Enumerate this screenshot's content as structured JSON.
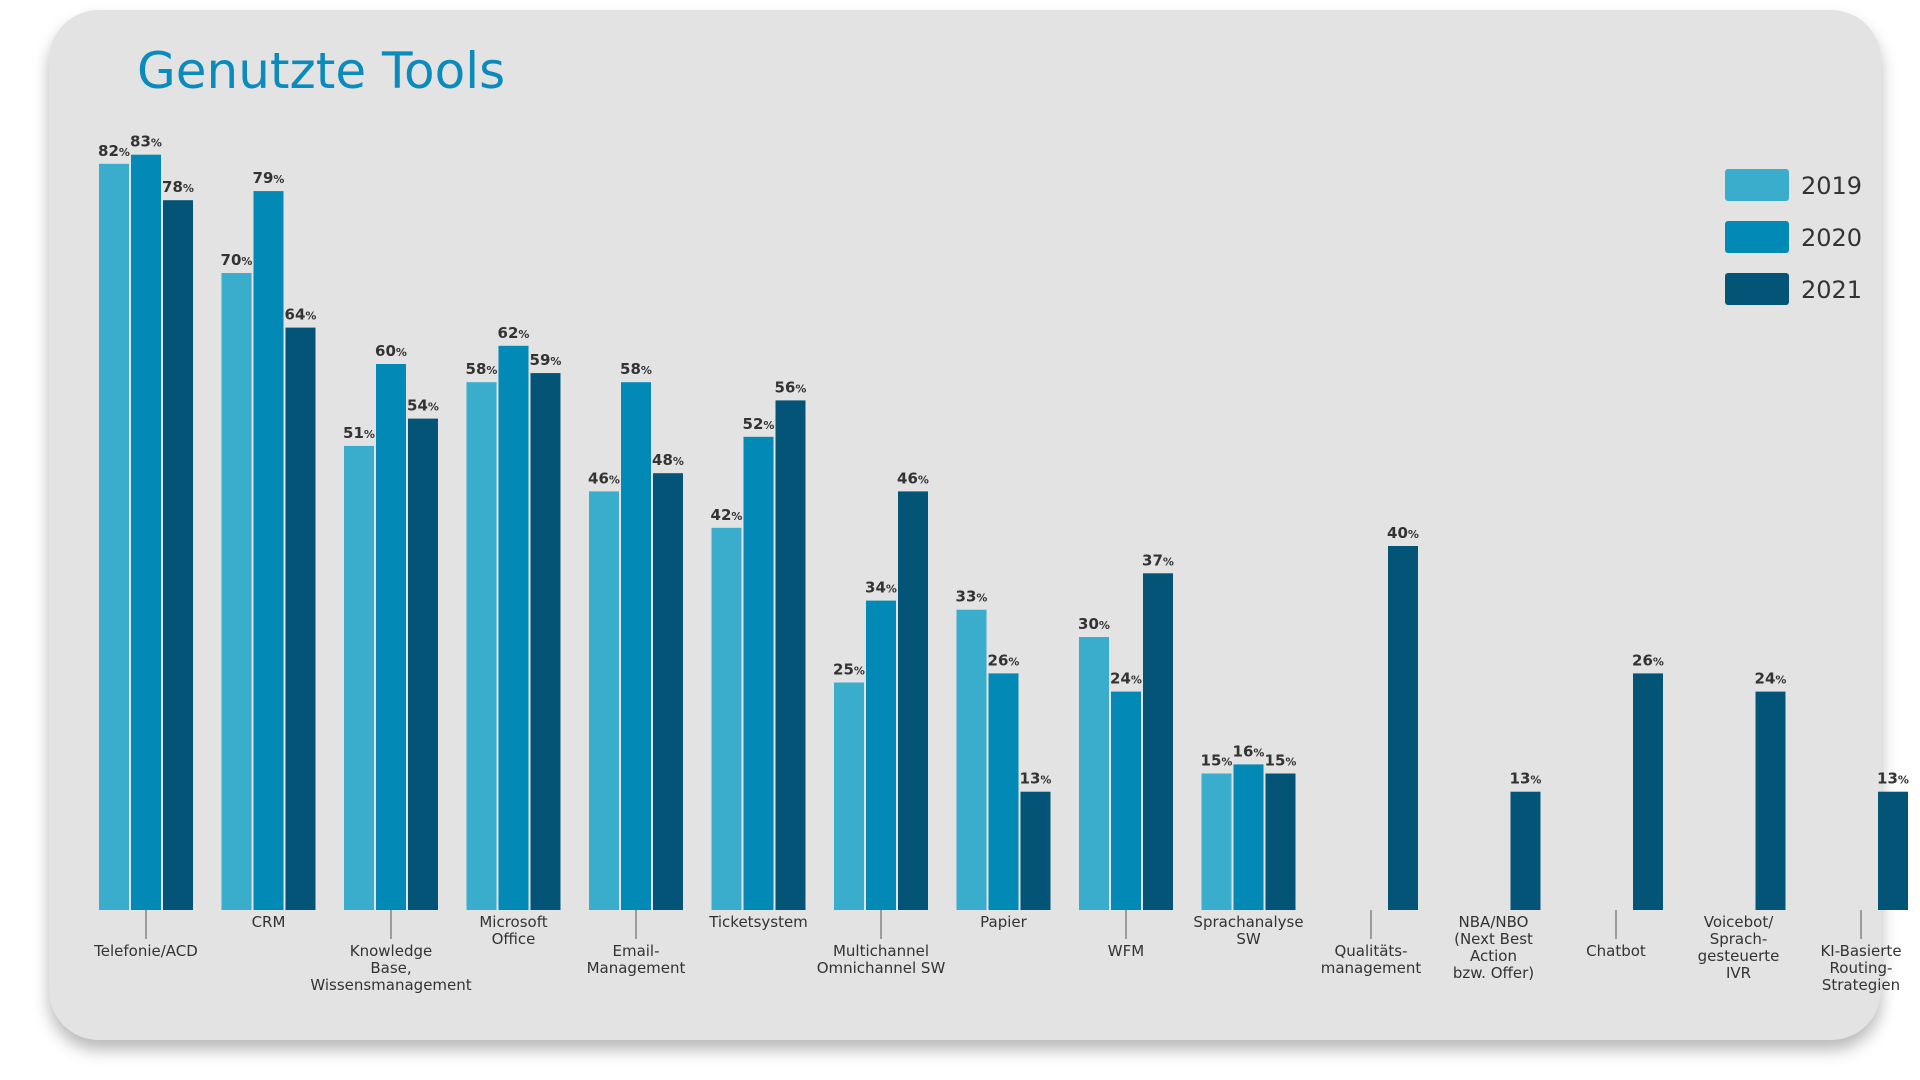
{
  "chart_data": {
    "type": "bar",
    "title": "Genutzte Tools",
    "xlabel": "",
    "ylabel": "",
    "unit": "%",
    "ylim": [
      0,
      85
    ],
    "grid": false,
    "legend_position": "top-right",
    "categories": [
      "Telefonie/ACD",
      "CRM",
      "Knowledge Base, Wissensmanagement",
      "Microsoft Office",
      "Email-Management",
      "Ticketsystem",
      "Multichannel Omnichannel SW",
      "Papier",
      "WFM",
      "Sprachanalyse SW",
      "Qualitäts-management",
      "NBA/NBO (Next Best Action bzw. Offer)",
      "Chatbot",
      "Voicebot/ Sprach-gesteuerte IVR",
      "KI-Basierte Routing-Strategien"
    ],
    "category_lines": [
      [
        "Telefonie/ACD"
      ],
      [
        "CRM"
      ],
      [
        "Knowledge",
        "Base,",
        "Wissensmanagement"
      ],
      [
        "Microsoft",
        "Office"
      ],
      [
        "Email-",
        "Management"
      ],
      [
        "Ticketsystem"
      ],
      [
        "Multichannel",
        "Omnichannel SW"
      ],
      [
        "Papier"
      ],
      [
        "WFM"
      ],
      [
        "Sprachanalyse",
        "SW"
      ],
      [
        "Qualitäts-",
        "management"
      ],
      [
        "NBA/NBO",
        "(Next Best",
        "Action",
        "bzw. Offer)"
      ],
      [
        "Chatbot"
      ],
      [
        "Voicebot/",
        "Sprach-",
        "gesteuerte",
        "IVR"
      ],
      [
        "KI-Basierte",
        "Routing-",
        "Strategien"
      ]
    ],
    "series": [
      {
        "name": "2019",
        "color": "#3aadcd",
        "values": [
          82,
          70,
          51,
          58,
          46,
          42,
          25,
          33,
          30,
          15,
          null,
          null,
          null,
          null,
          null
        ]
      },
      {
        "name": "2020",
        "color": "#0289b6",
        "values": [
          83,
          79,
          60,
          62,
          58,
          52,
          34,
          26,
          24,
          16,
          null,
          null,
          null,
          null,
          null
        ]
      },
      {
        "name": "2021",
        "color": "#045478",
        "values": [
          78,
          64,
          54,
          59,
          48,
          56,
          46,
          13,
          37,
          15,
          40,
          13,
          26,
          24,
          13
        ]
      }
    ]
  },
  "colors": {
    "card_background": "#e3e3e3",
    "title": "#0a8bbb",
    "text": "#333333",
    "axis": "#555555"
  }
}
